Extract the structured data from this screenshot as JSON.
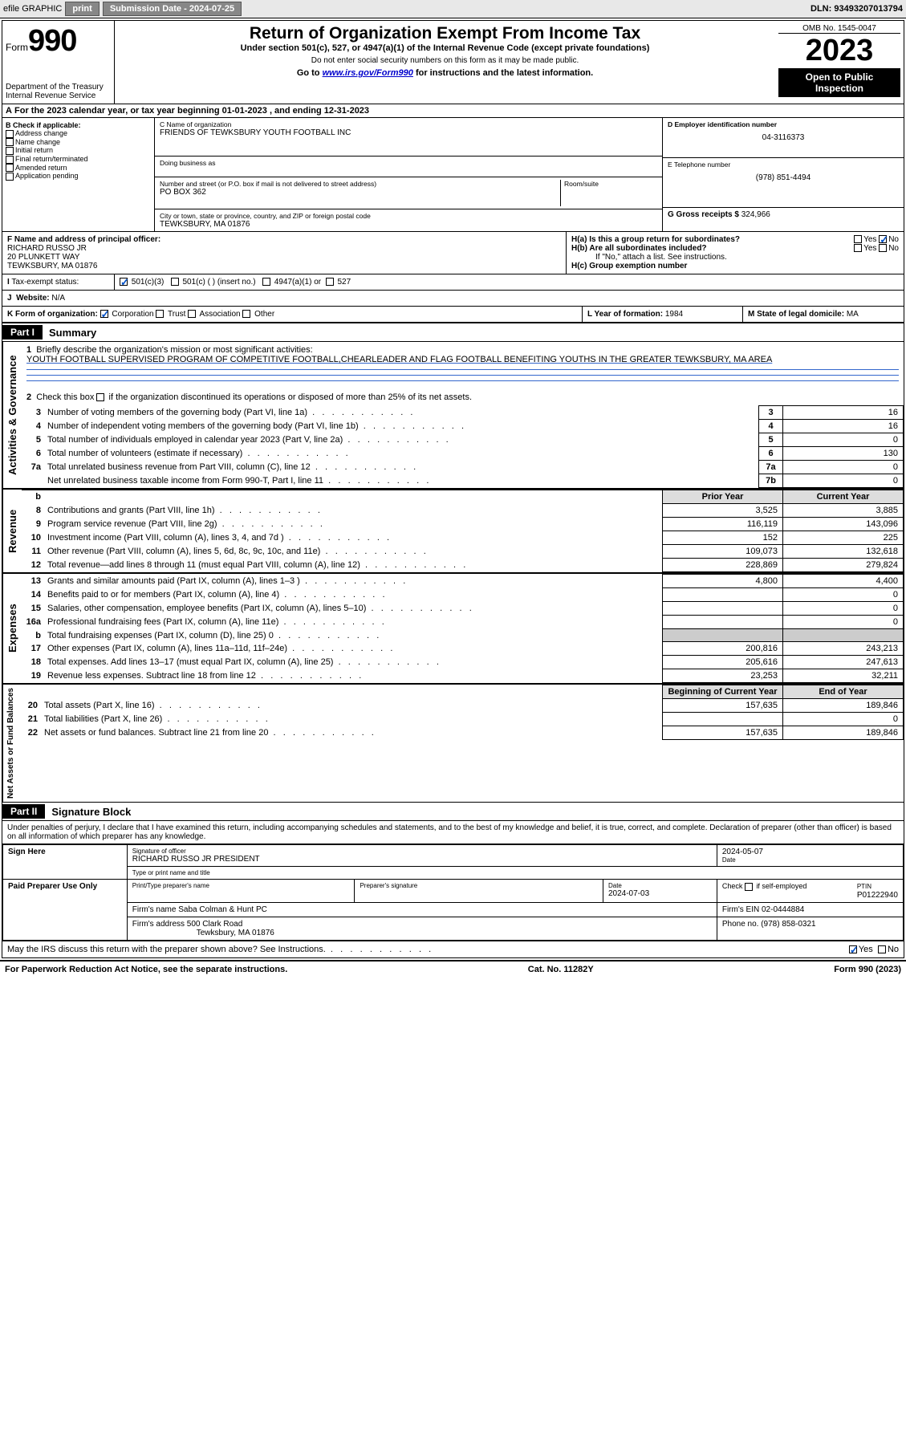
{
  "topbar": {
    "efile": "efile GRAPHIC",
    "print": "print",
    "subdate_lbl": "Submission Date - ",
    "subdate": "2024-07-25",
    "dln_lbl": "DLN: ",
    "dln": "93493207013794"
  },
  "header": {
    "form_word": "Form",
    "form_num": "990",
    "dept": "Department of the Treasury",
    "irs": "Internal Revenue Service",
    "title": "Return of Organization Exempt From Income Tax",
    "sub1": "Under section 501(c), 527, or 4947(a)(1) of the Internal Revenue Code (except private foundations)",
    "sub2": "Do not enter social security numbers on this form as it may be made public.",
    "sub3_pre": "Go to ",
    "sub3_link": "www.irs.gov/Form990",
    "sub3_post": " for instructions and the latest information.",
    "omb": "OMB No. 1545-0047",
    "year": "2023",
    "open": "Open to Public Inspection"
  },
  "taxyear": {
    "line_a": "For the 2023 calendar year, or tax year beginning 01-01-2023    , and ending 12-31-2023",
    "A": "A"
  },
  "boxB": {
    "hdr": "B Check if applicable:",
    "addr_change": "Address change",
    "name_change": "Name change",
    "initial": "Initial return",
    "final": "Final return/terminated",
    "amended": "Amended return",
    "app_pending": "Application pending"
  },
  "boxC": {
    "name_lbl": "C Name of organization",
    "name": "FRIENDS OF TEWKSBURY YOUTH FOOTBALL INC",
    "dba_lbl": "Doing business as",
    "street_lbl": "Number and street (or P.O. box if mail is not delivered to street address)",
    "street": "PO BOX 362",
    "room_lbl": "Room/suite",
    "city_lbl": "City or town, state or province, country, and ZIP or foreign postal code",
    "city": "TEWKSBURY, MA  01876"
  },
  "boxD": {
    "lbl": "D Employer identification number",
    "ein": "04-3116373"
  },
  "boxE": {
    "lbl": "E Telephone number",
    "tel": "(978) 851-4494"
  },
  "boxG": {
    "lbl": "G Gross receipts $ ",
    "val": "324,966"
  },
  "boxF": {
    "lbl": "F  Name and address of principal officer:",
    "name": "RICHARD RUSSO JR",
    "addr1": "20 PLUNKETT WAY",
    "addr2": "TEWKSBURY, MA  01876"
  },
  "boxH": {
    "a_lbl": "H(a)  Is this a group return for subordinates?",
    "yes": "Yes",
    "no": "No",
    "b_lbl": "H(b)  Are all subordinates included?",
    "b_note": "If \"No,\" attach a list. See instructions.",
    "c_lbl": "H(c)  Group exemption number  "
  },
  "boxI": {
    "lbl": "Tax-exempt status:",
    "i501c3": "501(c)(3)",
    "i501c": "501(c) (  ) (insert no.)",
    "i4947": "4947(a)(1) or",
    "i527": "527",
    "I": "I"
  },
  "boxJ": {
    "J": "J",
    "lbl": "Website:  ",
    "val": "N/A"
  },
  "boxK": {
    "lbl": "K Form of organization:",
    "corp": "Corporation",
    "trust": "Trust",
    "assoc": "Association",
    "other": "Other"
  },
  "boxL": {
    "lbl": "L Year of formation: ",
    "val": "1984"
  },
  "boxM": {
    "lbl": "M State of legal domicile: ",
    "val": "MA"
  },
  "partI": {
    "hdr": "Part I",
    "title": "Summary",
    "l1_lbl": "Briefly describe the organization's mission or most significant activities:",
    "l1_txt": "YOUTH FOOTBALL SUPERVISED PROGRAM OF COMPETITIVE FOOTBALL,CHEARLEADER AND FLAG FOOTBALL BENEFITING YOUTHS IN THE GREATER TEWKSBURY, MA AREA",
    "l2": "Check this box        if the organization discontinued its operations or disposed of more than 25% of its net assets.",
    "tabs": {
      "gov": "Activities & Governance",
      "rev": "Revenue",
      "exp": "Expenses",
      "net": "Net Assets or Fund Balances"
    },
    "rows_gov": [
      {
        "n": "3",
        "t": "Number of voting members of the governing body (Part VI, line 1a)",
        "box": "3",
        "v": "16"
      },
      {
        "n": "4",
        "t": "Number of independent voting members of the governing body (Part VI, line 1b)",
        "box": "4",
        "v": "16"
      },
      {
        "n": "5",
        "t": "Total number of individuals employed in calendar year 2023 (Part V, line 2a)",
        "box": "5",
        "v": "0"
      },
      {
        "n": "6",
        "t": "Total number of volunteers (estimate if necessary)",
        "box": "6",
        "v": "130"
      },
      {
        "n": "7a",
        "t": "Total unrelated business revenue from Part VIII, column (C), line 12",
        "box": "7a",
        "v": "0"
      },
      {
        "n": "",
        "t": "Net unrelated business taxable income from Form 990-T, Part I, line 11",
        "box": "7b",
        "v": "0"
      }
    ],
    "col_prior": "Prior Year",
    "col_curr": "Current Year",
    "rows_rev": [
      {
        "n": "8",
        "t": "Contributions and grants (Part VIII, line 1h)",
        "p": "3,525",
        "c": "3,885"
      },
      {
        "n": "9",
        "t": "Program service revenue (Part VIII, line 2g)",
        "p": "116,119",
        "c": "143,096"
      },
      {
        "n": "10",
        "t": "Investment income (Part VIII, column (A), lines 3, 4, and 7d )",
        "p": "152",
        "c": "225"
      },
      {
        "n": "11",
        "t": "Other revenue (Part VIII, column (A), lines 5, 6d, 8c, 9c, 10c, and 11e)",
        "p": "109,073",
        "c": "132,618"
      },
      {
        "n": "12",
        "t": "Total revenue—add lines 8 through 11 (must equal Part VIII, column (A), line 12)",
        "p": "228,869",
        "c": "279,824"
      }
    ],
    "rows_exp": [
      {
        "n": "13",
        "t": "Grants and similar amounts paid (Part IX, column (A), lines 1–3 )",
        "p": "4,800",
        "c": "4,400"
      },
      {
        "n": "14",
        "t": "Benefits paid to or for members (Part IX, column (A), line 4)",
        "p": "",
        "c": "0"
      },
      {
        "n": "15",
        "t": "Salaries, other compensation, employee benefits (Part IX, column (A), lines 5–10)",
        "p": "",
        "c": "0"
      },
      {
        "n": "16a",
        "t": "Professional fundraising fees (Part IX, column (A), line 11e)",
        "p": "",
        "c": "0"
      },
      {
        "n": "b",
        "t": "Total fundraising expenses (Part IX, column (D), line 25) 0",
        "p": "grey",
        "c": "grey"
      },
      {
        "n": "17",
        "t": "Other expenses (Part IX, column (A), lines 11a–11d, 11f–24e)",
        "p": "200,816",
        "c": "243,213"
      },
      {
        "n": "18",
        "t": "Total expenses. Add lines 13–17 (must equal Part IX, column (A), line 25)",
        "p": "205,616",
        "c": "247,613"
      },
      {
        "n": "19",
        "t": "Revenue less expenses. Subtract line 18 from line 12",
        "p": "23,253",
        "c": "32,211"
      }
    ],
    "col_boy": "Beginning of Current Year",
    "col_eoy": "End of Year",
    "rows_net": [
      {
        "n": "20",
        "t": "Total assets (Part X, line 16)",
        "p": "157,635",
        "c": "189,846"
      },
      {
        "n": "21",
        "t": "Total liabilities (Part X, line 26)",
        "p": "",
        "c": "0"
      },
      {
        "n": "22",
        "t": "Net assets or fund balances. Subtract line 21 from line 20",
        "p": "157,635",
        "c": "189,846"
      }
    ]
  },
  "partII": {
    "hdr": "Part II",
    "title": "Signature Block",
    "decl": "Under penalties of perjury, I declare that I have examined this return, including accompanying schedules and statements, and to the best of my knowledge and belief, it is true, correct, and complete. Declaration of preparer (other than officer) is based on all information of which preparer has any knowledge."
  },
  "sign": {
    "here": "Sign Here",
    "sig_lbl": "Signature of officer",
    "sig_name": "RICHARD RUSSO JR  PRESIDENT",
    "name_lbl": "Type or print name and title",
    "date_lbl": "Date",
    "date": "2024-05-07",
    "paid": "Paid Preparer Use Only",
    "prep_name_lbl": "Print/Type preparer's name",
    "prep_sig_lbl": "Preparer's signature",
    "prep_date_lbl": "Date",
    "prep_date": "2024-07-03",
    "check_lbl": "Check        if self-employed",
    "ptin_lbl": "PTIN",
    "ptin": "P01222940",
    "firm_name_lbl": "Firm's name   ",
    "firm_name": "Saba Colman & Hunt PC",
    "firm_ein_lbl": "Firm's EIN  ",
    "firm_ein": "02-0444884",
    "firm_addr_lbl": "Firm's address ",
    "firm_addr": "500 Clark Road",
    "firm_city": "Tewksbury, MA  01876",
    "phone_lbl": "Phone no. ",
    "phone": "(978) 858-0321",
    "discuss": "May the IRS discuss this return with the preparer shown above? See Instructions."
  },
  "footer": {
    "pra": "For Paperwork Reduction Act Notice, see the separate instructions.",
    "cat": "Cat. No. 11282Y",
    "form": "Form 990 (2023)"
  },
  "colors": {
    "link": "#0000cc",
    "check": "#0050c8",
    "underline": "#3366cc"
  }
}
